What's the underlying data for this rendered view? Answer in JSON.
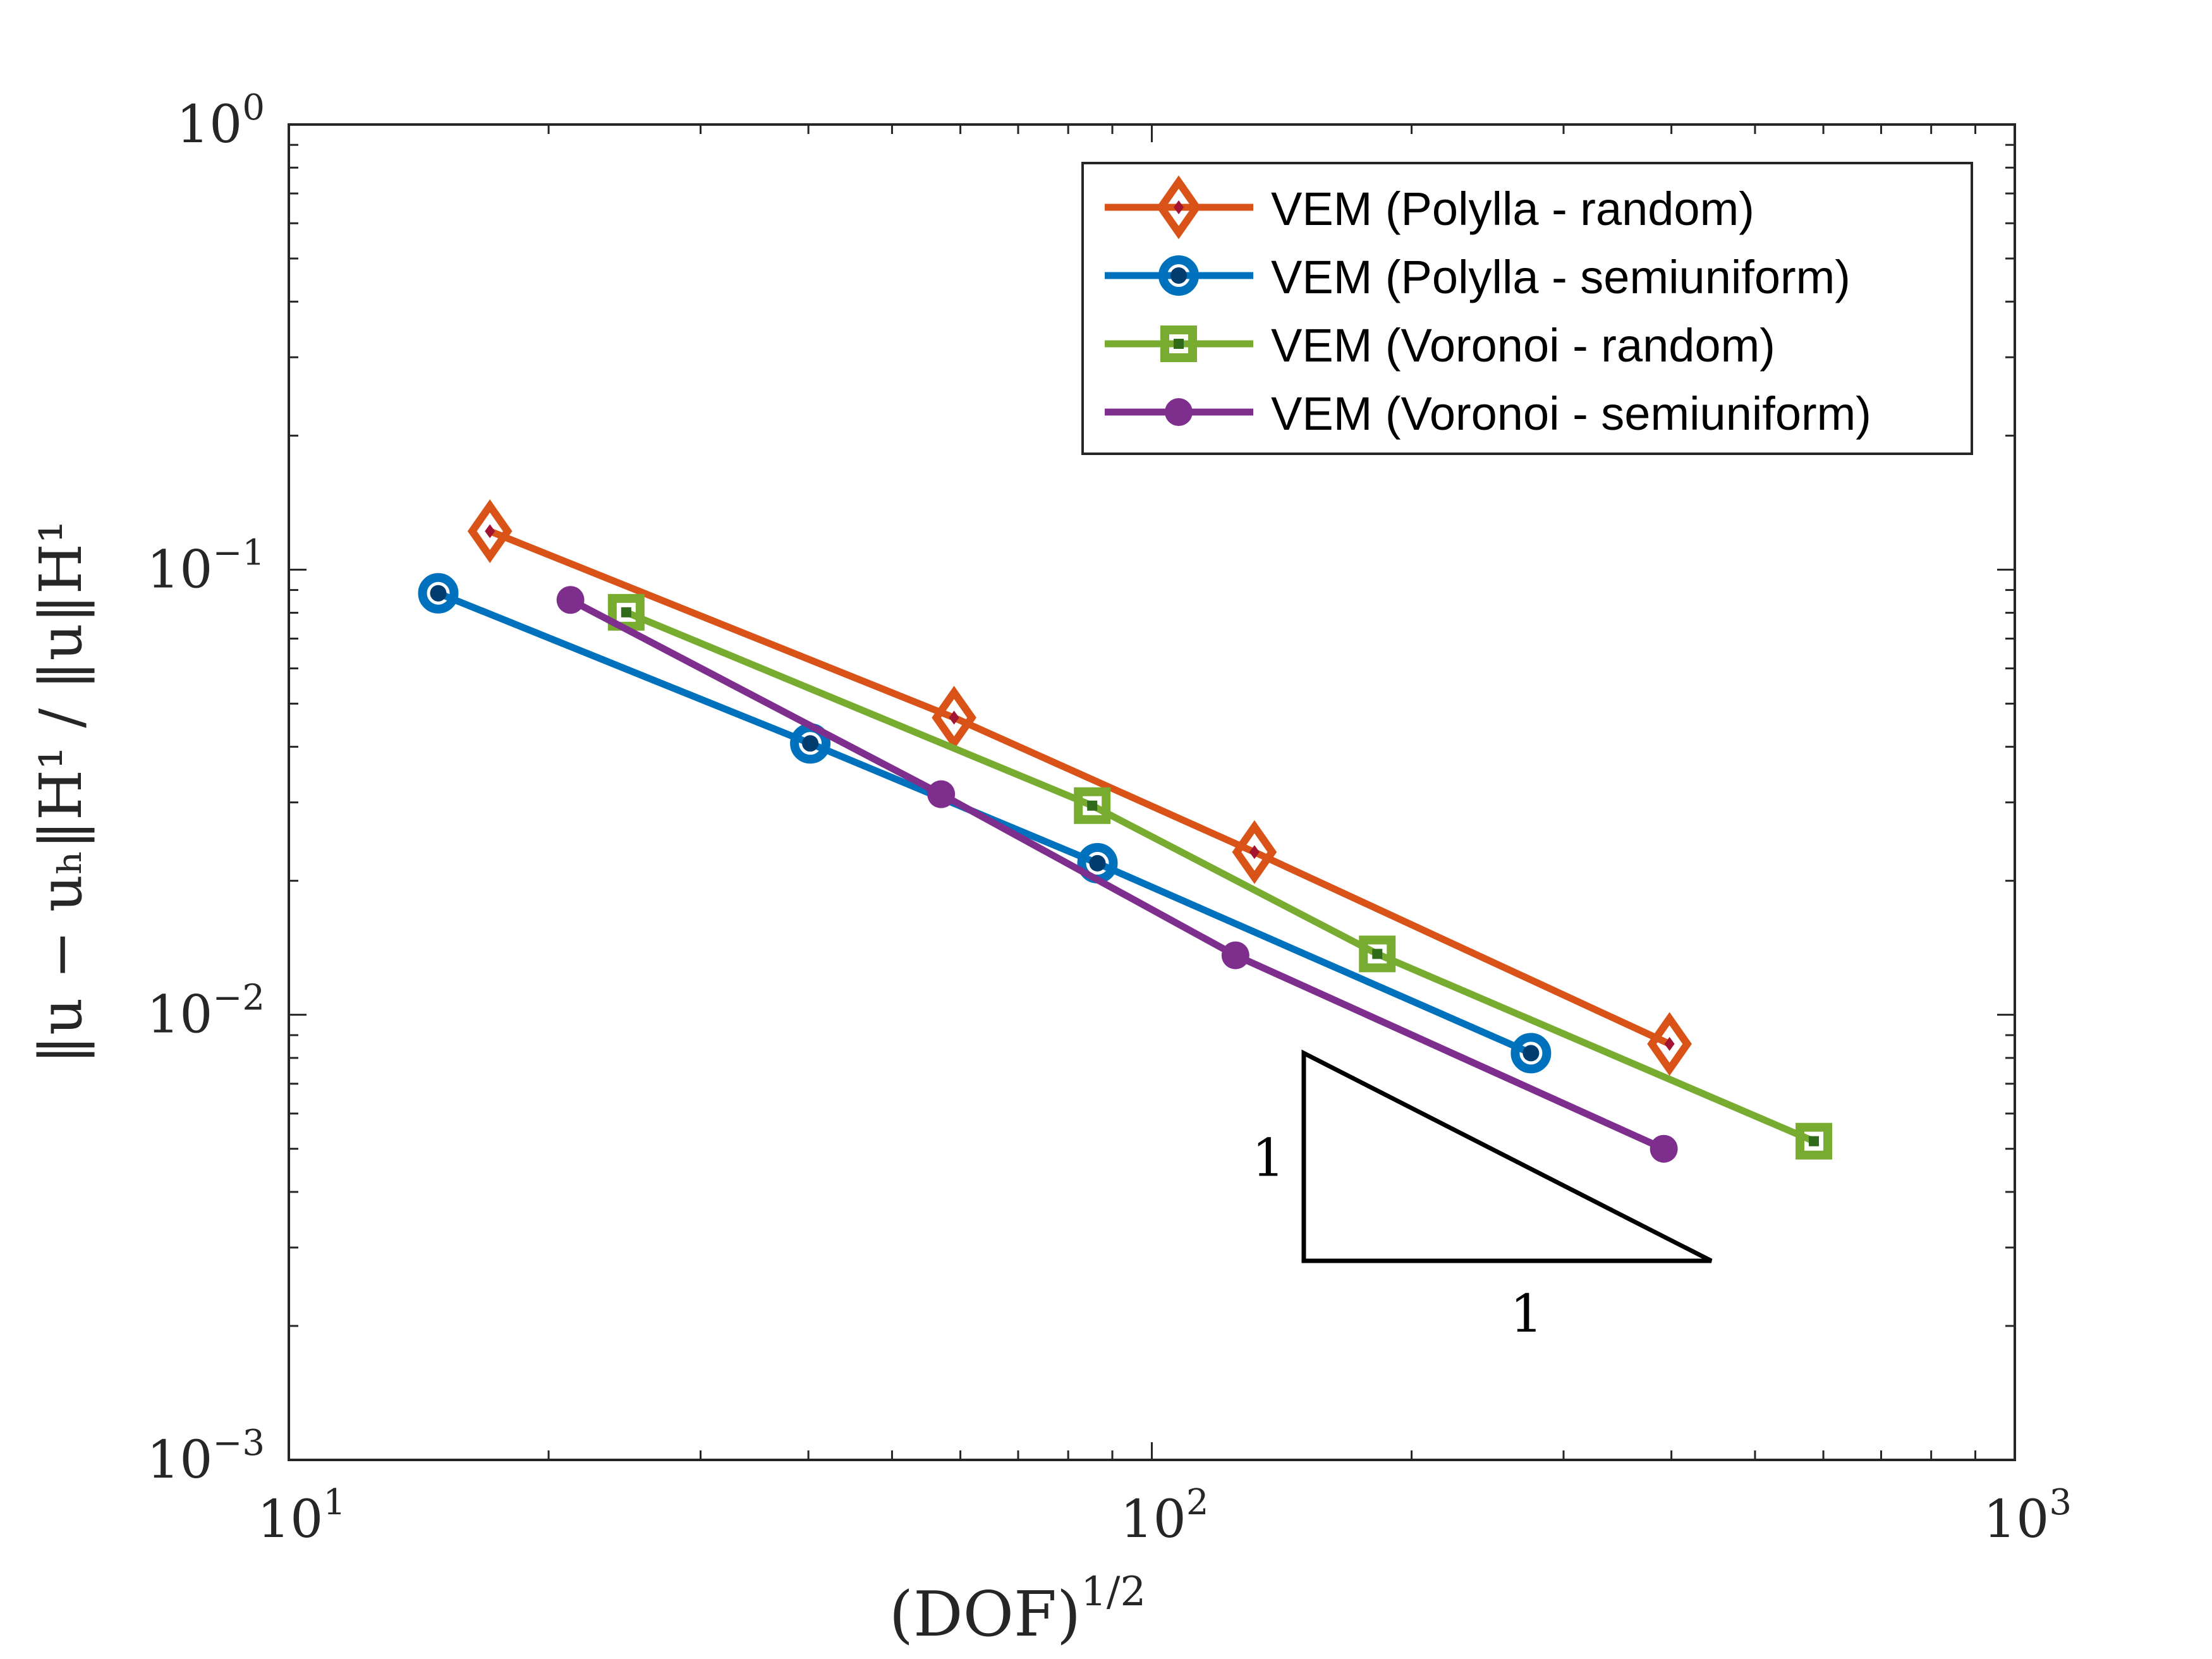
{
  "chart_data": {
    "type": "line",
    "xscale": "log",
    "yscale": "log",
    "xlim": [
      10,
      1000
    ],
    "ylim": [
      0.001,
      1
    ],
    "xticks": [
      {
        "base": "10",
        "exp": "1"
      },
      {
        "base": "10",
        "exp": "2"
      },
      {
        "base": "10",
        "exp": "3"
      }
    ],
    "yticks": [
      {
        "base": "10",
        "exp": "0"
      },
      {
        "base": "10",
        "exp": "−1"
      },
      {
        "base": "10",
        "exp": "−2"
      },
      {
        "base": "10",
        "exp": "−3"
      }
    ],
    "xlabel": {
      "main": "(DOF)",
      "sup": "1/2"
    },
    "ylabel": {
      "text": "‖u − uₕ‖H¹ / ‖u‖H¹"
    },
    "grid": false,
    "legend_position": "top-right",
    "series": [
      {
        "name": "VEM (Polylla - random)",
        "color": "#D95319",
        "inner_color": "#A2142F",
        "marker": "diamond",
        "x": [
          17.1,
          59.0,
          131.5,
          398.0
        ],
        "y": [
          0.122,
          0.0465,
          0.0232,
          0.0086
        ]
      },
      {
        "name": "VEM (Polylla - semiuniform)",
        "color": "#0072BD",
        "inner_color": "#003C6E",
        "marker": "circle-large",
        "x": [
          14.9,
          40.2,
          86.5,
          275.0
        ],
        "y": [
          0.0885,
          0.0407,
          0.0219,
          0.0082
        ]
      },
      {
        "name": "VEM (Voronoi - random)",
        "color": "#77AC30",
        "inner_color": "#2F6B1A",
        "marker": "square",
        "x": [
          24.6,
          85.3,
          182.5,
          585.0
        ],
        "y": [
          0.0802,
          0.0295,
          0.0137,
          0.0052
        ]
      },
      {
        "name": "VEM (Voronoi - semiuniform)",
        "color": "#7E2F8E",
        "inner_color": "#7E2F8E",
        "marker": "circle-small",
        "x": [
          21.2,
          57.0,
          125.0,
          392.0
        ],
        "y": [
          0.0855,
          0.0313,
          0.0136,
          0.005
        ]
      }
    ],
    "slope_triangle": {
      "vertices": [
        [
          150,
          0.0082
        ],
        [
          150,
          0.0028
        ],
        [
          445,
          0.0028
        ]
      ],
      "label_vertical": "1",
      "label_horizontal": "1"
    }
  }
}
